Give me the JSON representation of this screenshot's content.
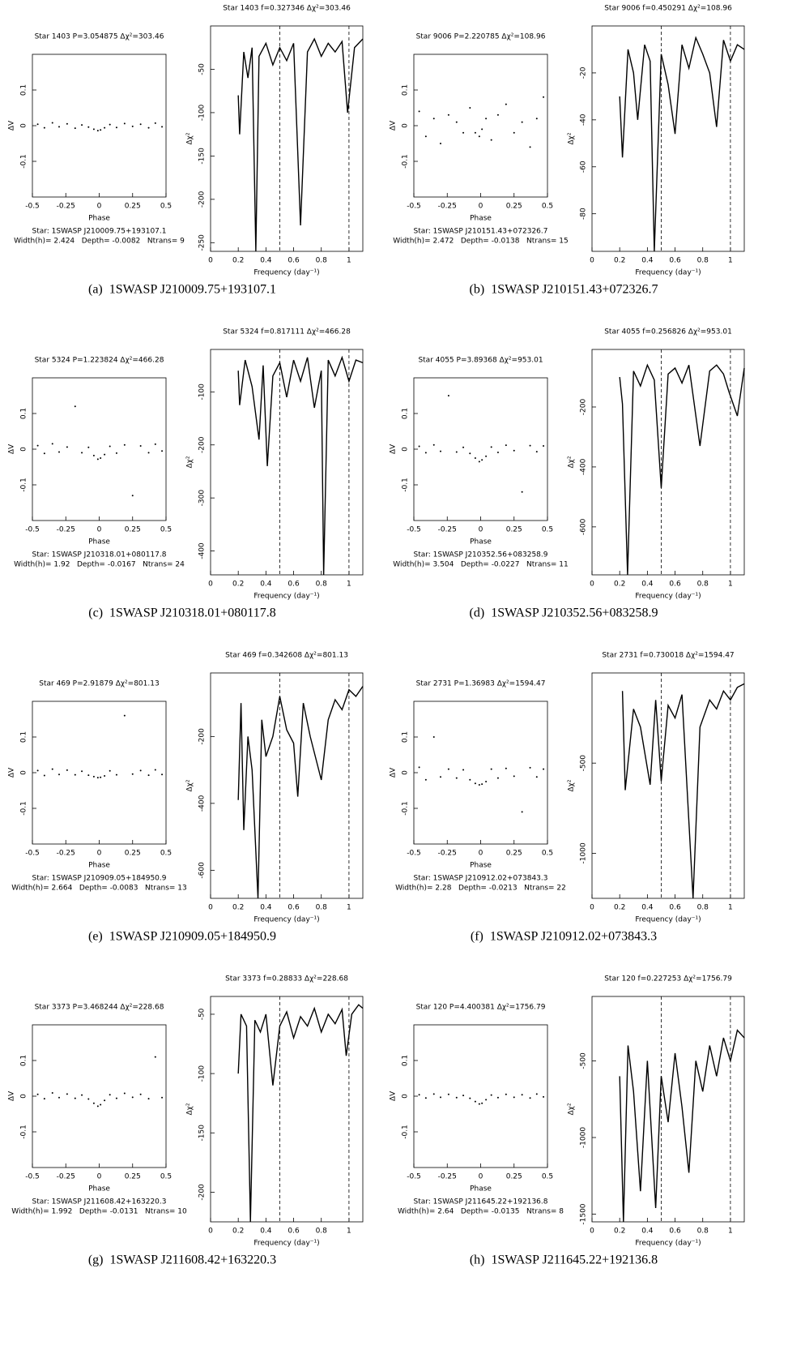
{
  "chart_data": [
    {
      "type": "scatter",
      "title": "Star 1403 P=3.054875 Δχ²=303.46",
      "xlabel": "Phase",
      "ylabel": "ΔV",
      "xlim": [
        -0.5,
        0.5
      ],
      "xticks": [
        -0.5,
        -0.25,
        0,
        0.25,
        0.5
      ],
      "ylim": [
        -0.2,
        0.2
      ],
      "yticks": [
        -0.1,
        0,
        0.1
      ],
      "color": "#000000",
      "annotations": [
        "Star: 1SWASP J210009.75+193107.1",
        "Width(h)= 2.424   Depth= -0.0082   Ntrans= 9"
      ],
      "x": [
        -0.46,
        -0.41,
        -0.35,
        -0.3,
        -0.24,
        -0.18,
        -0.13,
        -0.08,
        -0.04,
        -0.01,
        0.01,
        0.04,
        0.08,
        0.13,
        0.19,
        0.25,
        0.31,
        0.37,
        0.42,
        0.47
      ],
      "y": [
        0.004,
        -0.006,
        0.008,
        -0.003,
        0.005,
        -0.007,
        0.002,
        -0.004,
        -0.01,
        -0.014,
        -0.012,
        -0.006,
        0.003,
        -0.005,
        0.006,
        -0.002,
        0.004,
        -0.006,
        0.007,
        -0.003
      ]
    },
    {
      "type": "line",
      "title": "Star 1403 f=0.327346 Δχ²=303.46",
      "xlabel": "Frequency (day⁻¹)",
      "ylabel": "Δχ²",
      "xlim": [
        0,
        1.1
      ],
      "xticks": [
        0,
        0.2,
        0.4,
        0.6,
        0.8,
        1
      ],
      "ylim": [
        -260,
        0
      ],
      "yticks": [
        -50,
        -100,
        -150,
        -200,
        -250
      ],
      "vlines": [
        0.5,
        1
      ],
      "color": "#000000",
      "x": [
        0.2,
        0.21,
        0.24,
        0.27,
        0.3,
        0.327,
        0.35,
        0.4,
        0.45,
        0.5,
        0.55,
        0.6,
        0.65,
        0.7,
        0.75,
        0.8,
        0.85,
        0.9,
        0.95,
        0.99,
        1.04,
        1.1
      ],
      "y": [
        -80,
        -125,
        -30,
        -60,
        -25,
        -260,
        -35,
        -20,
        -45,
        -25,
        -40,
        -20,
        -230,
        -30,
        -15,
        -35,
        -20,
        -30,
        -18,
        -100,
        -25,
        -15
      ]
    },
    {
      "type": "scatter",
      "title": "Star 9006 P=2.220785 Δχ²=108.96",
      "xlabel": "Phase",
      "ylabel": "ΔV",
      "xlim": [
        -0.5,
        0.5
      ],
      "xticks": [
        -0.5,
        -0.25,
        0,
        0.25,
        0.5
      ],
      "ylim": [
        -0.2,
        0.2
      ],
      "yticks": [
        -0.1,
        0,
        0.1
      ],
      "color": "#000000",
      "annotations": [
        "Star: 1SWASP J210151.43+072326.7",
        "Width(h)= 2.472   Depth= -0.0138   Ntrans= 15"
      ],
      "x": [
        -0.46,
        -0.41,
        -0.35,
        -0.3,
        -0.24,
        -0.18,
        -0.13,
        -0.08,
        -0.04,
        -0.01,
        0.01,
        0.04,
        0.08,
        0.13,
        0.19,
        0.25,
        0.31,
        0.37,
        0.42,
        0.47
      ],
      "y": [
        0.04,
        -0.03,
        0.02,
        -0.05,
        0.03,
        0.01,
        -0.02,
        0.05,
        -0.02,
        -0.03,
        -0.01,
        0.02,
        -0.04,
        0.03,
        0.06,
        -0.02,
        0.01,
        -0.06,
        0.02,
        0.08
      ]
    },
    {
      "type": "line",
      "title": "Star 9006 f=0.450291 Δχ²=108.96",
      "xlabel": "Frequency (day⁻¹)",
      "ylabel": "Δχ²",
      "xlim": [
        0,
        1.1
      ],
      "xticks": [
        0,
        0.2,
        0.4,
        0.6,
        0.8,
        1
      ],
      "ylim": [
        -96,
        0
      ],
      "yticks": [
        -20,
        -40,
        -60,
        -80
      ],
      "vlines": [
        0.5,
        1
      ],
      "color": "#000000",
      "x": [
        0.2,
        0.22,
        0.26,
        0.3,
        0.33,
        0.38,
        0.42,
        0.45,
        0.5,
        0.55,
        0.6,
        0.65,
        0.7,
        0.75,
        0.8,
        0.85,
        0.9,
        0.95,
        1,
        1.05,
        1.1
      ],
      "y": [
        -30,
        -56,
        -10,
        -20,
        -40,
        -8,
        -15,
        -96,
        -12,
        -25,
        -46,
        -8,
        -18,
        -5,
        -12,
        -20,
        -43,
        -6,
        -15,
        -8,
        -10
      ]
    },
    {
      "type": "scatter",
      "title": "Star 5324 P=1.223824 Δχ²=466.28",
      "xlabel": "Phase",
      "ylabel": "ΔV",
      "xlim": [
        -0.5,
        0.5
      ],
      "xticks": [
        -0.5,
        -0.25,
        0,
        0.25,
        0.5
      ],
      "ylim": [
        -0.2,
        0.2
      ],
      "yticks": [
        -0.1,
        0,
        0.1
      ],
      "color": "#000000",
      "annotations": [
        "Star: 1SWASP J210318.01+080117.8",
        "Width(h)= 1.92   Depth= -0.0167   Ntrans= 24"
      ],
      "x": [
        -0.46,
        -0.41,
        -0.35,
        -0.3,
        -0.24,
        -0.18,
        -0.13,
        -0.08,
        -0.04,
        -0.01,
        0.01,
        0.04,
        0.08,
        0.13,
        0.19,
        0.25,
        0.31,
        0.37,
        0.42,
        0.47
      ],
      "y": [
        0.01,
        -0.012,
        0.015,
        -0.008,
        0.006,
        0.12,
        -0.01,
        0.005,
        -0.018,
        -0.028,
        -0.025,
        -0.015,
        0.008,
        -0.011,
        0.012,
        -0.13,
        0.009,
        -0.01,
        0.014,
        -0.005
      ]
    },
    {
      "type": "line",
      "title": "Star 5324 f=0.817111 Δχ²=466.28",
      "xlabel": "Frequency (day⁻¹)",
      "ylabel": "Δχ²",
      "xlim": [
        0,
        1.1
      ],
      "xticks": [
        0,
        0.2,
        0.4,
        0.6,
        0.8,
        1
      ],
      "ylim": [
        -445,
        -20
      ],
      "yticks": [
        -100,
        -200,
        -300,
        -400
      ],
      "vlines": [
        0.5,
        1
      ],
      "color": "#000000",
      "x": [
        0.2,
        0.21,
        0.25,
        0.3,
        0.35,
        0.38,
        0.41,
        0.45,
        0.5,
        0.55,
        0.6,
        0.65,
        0.7,
        0.75,
        0.8,
        0.817,
        0.85,
        0.9,
        0.95,
        1,
        1.05,
        1.1
      ],
      "y": [
        -60,
        -125,
        -40,
        -90,
        -190,
        -50,
        -240,
        -70,
        -45,
        -110,
        -40,
        -80,
        -35,
        -130,
        -60,
        -445,
        -40,
        -70,
        -35,
        -80,
        -40,
        -45
      ]
    },
    {
      "type": "scatter",
      "title": "Star 4055 P=3.89368 Δχ²=953.01",
      "xlabel": "Phase",
      "ylabel": "ΔV",
      "xlim": [
        -0.5,
        0.5
      ],
      "xticks": [
        -0.5,
        -0.25,
        0,
        0.25,
        0.5
      ],
      "ylim": [
        -0.2,
        0.2
      ],
      "yticks": [
        -0.1,
        0,
        0.1
      ],
      "color": "#000000",
      "annotations": [
        "Star: 1SWASP J210352.56+083258.9",
        "Width(h)= 3.504   Depth= -0.0227   Ntrans= 11"
      ],
      "x": [
        -0.46,
        -0.41,
        -0.35,
        -0.3,
        -0.24,
        -0.18,
        -0.13,
        -0.08,
        -0.04,
        -0.01,
        0.01,
        0.04,
        0.08,
        0.13,
        0.19,
        0.25,
        0.31,
        0.37,
        0.42,
        0.47
      ],
      "y": [
        0.008,
        -0.01,
        0.012,
        -0.006,
        0.15,
        -0.008,
        0.005,
        -0.012,
        -0.025,
        -0.035,
        -0.03,
        -0.02,
        0.006,
        -0.009,
        0.011,
        -0.004,
        -0.12,
        0.01,
        -0.007,
        0.009
      ]
    },
    {
      "type": "line",
      "title": "Star 4055 f=0.256826 Δχ²=953.01",
      "xlabel": "Frequency (day⁻¹)",
      "ylabel": "Δχ²",
      "xlim": [
        0,
        1.1
      ],
      "xticks": [
        0,
        0.2,
        0.4,
        0.6,
        0.8,
        1
      ],
      "ylim": [
        -760,
        -8
      ],
      "yticks": [
        -200,
        -400,
        -600
      ],
      "vlines": [
        0.5,
        1
      ],
      "color": "#000000",
      "x": [
        0.2,
        0.22,
        0.2568,
        0.3,
        0.35,
        0.4,
        0.45,
        0.5,
        0.55,
        0.6,
        0.65,
        0.7,
        0.78,
        0.85,
        0.9,
        0.95,
        0.99,
        1.05,
        1.1
      ],
      "y": [
        -100,
        -190,
        -760,
        -80,
        -130,
        -60,
        -110,
        -470,
        -90,
        -70,
        -120,
        -60,
        -330,
        -80,
        -60,
        -90,
        -150,
        -230,
        -70
      ]
    },
    {
      "type": "scatter",
      "title": "Star 469 P=2.91879 Δχ²=801.13",
      "xlabel": "Phase",
      "ylabel": "ΔV",
      "xlim": [
        -0.5,
        0.5
      ],
      "xticks": [
        -0.5,
        -0.25,
        0,
        0.25,
        0.5
      ],
      "ylim": [
        -0.2,
        0.2
      ],
      "yticks": [
        -0.1,
        0,
        0.1
      ],
      "color": "#000000",
      "annotations": [
        "Star: 1SWASP J210909.05+184950.9",
        "Width(h)= 2.664   Depth= -0.0083   Ntrans= 13"
      ],
      "x": [
        -0.46,
        -0.41,
        -0.35,
        -0.3,
        -0.24,
        -0.18,
        -0.13,
        -0.08,
        -0.04,
        -0.01,
        0.01,
        0.04,
        0.08,
        0.13,
        0.19,
        0.25,
        0.31,
        0.37,
        0.42,
        0.47
      ],
      "y": [
        0.006,
        -0.008,
        0.01,
        -0.005,
        0.007,
        -0.006,
        0.004,
        -0.007,
        -0.011,
        -0.014,
        -0.013,
        -0.009,
        0.005,
        -0.006,
        0.16,
        -0.004,
        0.006,
        -0.007,
        0.008,
        -0.005
      ]
    },
    {
      "type": "line",
      "title": "Star 469 f=0.342608 Δχ²=801.13",
      "xlabel": "Frequency (day⁻¹)",
      "ylabel": "Δχ²",
      "xlim": [
        0,
        1.1
      ],
      "xticks": [
        0,
        0.2,
        0.4,
        0.6,
        0.8,
        1
      ],
      "ylim": [
        -684,
        -10
      ],
      "yticks": [
        -200,
        -400,
        -600
      ],
      "vlines": [
        0.5,
        1
      ],
      "color": "#000000",
      "x": [
        0.2,
        0.22,
        0.24,
        0.27,
        0.3,
        0.3426,
        0.37,
        0.4,
        0.45,
        0.5,
        0.55,
        0.6,
        0.63,
        0.67,
        0.72,
        0.8,
        0.85,
        0.9,
        0.95,
        1,
        1.05,
        1.1
      ],
      "y": [
        -390,
        -100,
        -480,
        -200,
        -300,
        -684,
        -150,
        -260,
        -200,
        -80,
        -180,
        -220,
        -380,
        -100,
        -200,
        -330,
        -150,
        -90,
        -120,
        -60,
        -80,
        -50
      ]
    },
    {
      "type": "scatter",
      "title": "Star 2731 P=1.36983 Δχ²=1594.47",
      "xlabel": "Phase",
      "ylabel": "ΔV",
      "xlim": [
        -0.5,
        0.5
      ],
      "xticks": [
        -0.5,
        -0.25,
        0,
        0.25,
        0.5
      ],
      "ylim": [
        -0.2,
        0.2
      ],
      "yticks": [
        -0.1,
        0,
        0.1
      ],
      "color": "#000000",
      "annotations": [
        "Star: 1SWASP J210912.02+073843.3",
        "Width(h)= 2.28   Depth= -0.0213   Ntrans= 22"
      ],
      "x": [
        -0.46,
        -0.41,
        -0.35,
        -0.3,
        -0.24,
        -0.18,
        -0.13,
        -0.08,
        -0.04,
        -0.01,
        0.01,
        0.04,
        0.08,
        0.13,
        0.19,
        0.25,
        0.31,
        0.37,
        0.42,
        0.47
      ],
      "y": [
        0.015,
        -0.02,
        0.1,
        -0.012,
        0.01,
        -0.015,
        0.008,
        -0.02,
        -0.03,
        -0.034,
        -0.032,
        -0.025,
        0.01,
        -0.015,
        0.012,
        -0.01,
        -0.11,
        0.014,
        -0.012,
        0.01
      ]
    },
    {
      "type": "line",
      "title": "Star 2731 f=0.730018 Δχ²=1594.47",
      "xlabel": "Frequency (day⁻¹)",
      "ylabel": "Δχ²",
      "xlim": [
        0,
        1.1
      ],
      "xticks": [
        0,
        0.2,
        0.4,
        0.6,
        0.8,
        1
      ],
      "ylim": [
        -1250,
        0
      ],
      "yticks": [
        -500,
        -1000
      ],
      "vlines": [
        0.5,
        1
      ],
      "color": "#000000",
      "x": [
        0.22,
        0.24,
        0.3,
        0.35,
        0.42,
        0.46,
        0.5,
        0.55,
        0.6,
        0.65,
        0.73,
        0.78,
        0.85,
        0.9,
        0.95,
        1,
        1.05,
        1.1
      ],
      "y": [
        -100,
        -650,
        -200,
        -300,
        -620,
        -150,
        -600,
        -180,
        -250,
        -120,
        -1250,
        -300,
        -150,
        -200,
        -100,
        -150,
        -80,
        -60
      ]
    },
    {
      "type": "scatter",
      "title": "Star 3373 P=3.468244 Δχ²=228.68",
      "xlabel": "Phase",
      "ylabel": "ΔV",
      "xlim": [
        -0.5,
        0.5
      ],
      "xticks": [
        -0.5,
        -0.25,
        0,
        0.25,
        0.5
      ],
      "ylim": [
        -0.2,
        0.2
      ],
      "yticks": [
        -0.1,
        0,
        0.1
      ],
      "color": "#000000",
      "annotations": [
        "Star: 1SWASP J211608.42+163220.3",
        "Width(h)= 1.992   Depth= -0.0131   Ntrans= 10"
      ],
      "x": [
        -0.46,
        -0.41,
        -0.35,
        -0.3,
        -0.24,
        -0.18,
        -0.13,
        -0.08,
        -0.04,
        -0.01,
        0.01,
        0.04,
        0.08,
        0.13,
        0.19,
        0.25,
        0.31,
        0.37,
        0.42,
        0.47
      ],
      "y": [
        0.005,
        -0.007,
        0.009,
        -0.004,
        0.006,
        -0.006,
        0.003,
        -0.008,
        -0.02,
        -0.028,
        -0.024,
        -0.012,
        0.004,
        -0.006,
        0.008,
        -0.003,
        0.005,
        -0.007,
        0.11,
        -0.004
      ]
    },
    {
      "type": "line",
      "title": "Star 3373 f=0.28833 Δχ²=228.68",
      "xlabel": "Frequency (day⁻¹)",
      "ylabel": "Δχ²",
      "xlim": [
        0,
        1.1
      ],
      "xticks": [
        0,
        0.2,
        0.4,
        0.6,
        0.8,
        1
      ],
      "ylim": [
        -225,
        -35
      ],
      "yticks": [
        -50,
        -100,
        -150,
        -200
      ],
      "vlines": [
        0.5,
        1
      ],
      "color": "#000000",
      "x": [
        0.2,
        0.22,
        0.26,
        0.288,
        0.32,
        0.36,
        0.4,
        0.45,
        0.5,
        0.55,
        0.6,
        0.65,
        0.7,
        0.75,
        0.8,
        0.85,
        0.9,
        0.95,
        0.98,
        1.02,
        1.07,
        1.1
      ],
      "y": [
        -100,
        -50,
        -60,
        -225,
        -55,
        -65,
        -50,
        -110,
        -60,
        -48,
        -70,
        -52,
        -60,
        -45,
        -65,
        -50,
        -58,
        -46,
        -85,
        -50,
        -42,
        -45
      ]
    },
    {
      "type": "scatter",
      "title": "Star 120 P=4.400381 Δχ²=1756.79",
      "xlabel": "Phase",
      "ylabel": "ΔV",
      "xlim": [
        -0.5,
        0.5
      ],
      "xticks": [
        -0.5,
        -0.25,
        0,
        0.25,
        0.5
      ],
      "ylim": [
        -0.2,
        0.2
      ],
      "yticks": [
        -0.1,
        0,
        0.1
      ],
      "color": "#000000",
      "annotations": [
        "Star: 1SWASP J211645.22+192136.8",
        "Width(h)= 2.64   Depth= -0.0135   Ntrans= 8"
      ],
      "x": [
        -0.46,
        -0.41,
        -0.35,
        -0.3,
        -0.24,
        -0.18,
        -0.13,
        -0.08,
        -0.04,
        -0.01,
        0.01,
        0.04,
        0.08,
        0.13,
        0.19,
        0.25,
        0.31,
        0.37,
        0.42,
        0.47
      ],
      "y": [
        0.004,
        -0.005,
        0.006,
        -0.003,
        0.005,
        -0.004,
        0.002,
        -0.006,
        -0.015,
        -0.022,
        -0.02,
        -0.01,
        0.003,
        -0.004,
        0.005,
        -0.003,
        0.004,
        -0.005,
        0.006,
        -0.002
      ]
    },
    {
      "type": "line",
      "title": "Star 120 f=0.227253 Δχ²=1756.79",
      "xlabel": "Frequency (day⁻¹)",
      "ylabel": "Δχ²",
      "xlim": [
        0,
        1.1
      ],
      "xticks": [
        0,
        0.2,
        0.4,
        0.6,
        0.8,
        1
      ],
      "ylim": [
        -1550,
        -80
      ],
      "yticks": [
        -500,
        -1000,
        -1500
      ],
      "vlines": [
        0.5,
        1
      ],
      "color": "#000000",
      "x": [
        0.2,
        0.227,
        0.26,
        0.3,
        0.35,
        0.4,
        0.46,
        0.5,
        0.55,
        0.6,
        0.65,
        0.7,
        0.75,
        0.8,
        0.85,
        0.9,
        0.95,
        1,
        1.05,
        1.1
      ],
      "y": [
        -600,
        -1550,
        -400,
        -700,
        -1350,
        -500,
        -1460,
        -600,
        -900,
        -450,
        -800,
        -1230,
        -500,
        -700,
        -400,
        -600,
        -350,
        -500,
        -300,
        -350
      ]
    }
  ],
  "captions": [
    "(a)  1SWASP J210009.75+193107.1",
    "(b)  1SWASP J210151.43+072326.7",
    "(c)  1SWASP J210318.01+080117.8",
    "(d)  1SWASP J210352.56+083258.9",
    "(e)  1SWASP J210909.05+184950.9",
    "(f)  1SWASP J210912.02+073843.3",
    "(g)  1SWASP J211608.42+163220.3",
    "(h)  1SWASP J211645.22+192136.8"
  ]
}
